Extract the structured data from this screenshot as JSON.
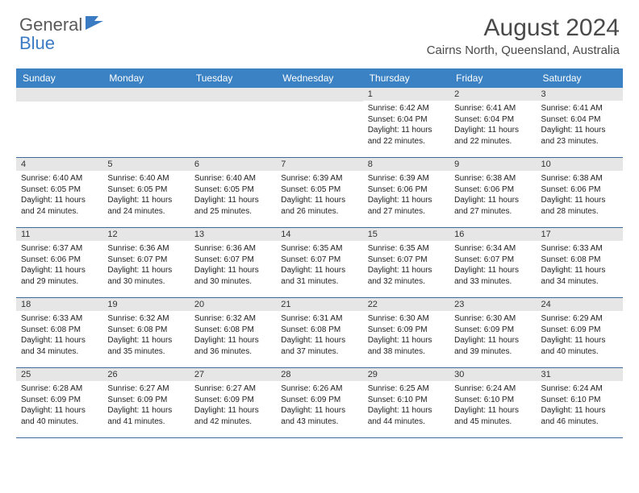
{
  "logo": {
    "part1": "General",
    "part2": "Blue"
  },
  "title": "August 2024",
  "location": "Cairns North, Queensland, Australia",
  "colors": {
    "header_bg": "#3b82c4",
    "header_text": "#ffffff",
    "daynum_bg": "#e6e6e6",
    "week_border": "#3b6a9a",
    "title_color": "#4a4a4a",
    "logo_gray": "#5a5a5a",
    "logo_blue": "#3b7bc4"
  },
  "daynames": [
    "Sunday",
    "Monday",
    "Tuesday",
    "Wednesday",
    "Thursday",
    "Friday",
    "Saturday"
  ],
  "weeks": [
    [
      null,
      null,
      null,
      null,
      {
        "n": "1",
        "sr": "Sunrise: 6:42 AM",
        "ss": "Sunset: 6:04 PM",
        "dl": "Daylight: 11 hours and 22 minutes."
      },
      {
        "n": "2",
        "sr": "Sunrise: 6:41 AM",
        "ss": "Sunset: 6:04 PM",
        "dl": "Daylight: 11 hours and 22 minutes."
      },
      {
        "n": "3",
        "sr": "Sunrise: 6:41 AM",
        "ss": "Sunset: 6:04 PM",
        "dl": "Daylight: 11 hours and 23 minutes."
      }
    ],
    [
      {
        "n": "4",
        "sr": "Sunrise: 6:40 AM",
        "ss": "Sunset: 6:05 PM",
        "dl": "Daylight: 11 hours and 24 minutes."
      },
      {
        "n": "5",
        "sr": "Sunrise: 6:40 AM",
        "ss": "Sunset: 6:05 PM",
        "dl": "Daylight: 11 hours and 24 minutes."
      },
      {
        "n": "6",
        "sr": "Sunrise: 6:40 AM",
        "ss": "Sunset: 6:05 PM",
        "dl": "Daylight: 11 hours and 25 minutes."
      },
      {
        "n": "7",
        "sr": "Sunrise: 6:39 AM",
        "ss": "Sunset: 6:05 PM",
        "dl": "Daylight: 11 hours and 26 minutes."
      },
      {
        "n": "8",
        "sr": "Sunrise: 6:39 AM",
        "ss": "Sunset: 6:06 PM",
        "dl": "Daylight: 11 hours and 27 minutes."
      },
      {
        "n": "9",
        "sr": "Sunrise: 6:38 AM",
        "ss": "Sunset: 6:06 PM",
        "dl": "Daylight: 11 hours and 27 minutes."
      },
      {
        "n": "10",
        "sr": "Sunrise: 6:38 AM",
        "ss": "Sunset: 6:06 PM",
        "dl": "Daylight: 11 hours and 28 minutes."
      }
    ],
    [
      {
        "n": "11",
        "sr": "Sunrise: 6:37 AM",
        "ss": "Sunset: 6:06 PM",
        "dl": "Daylight: 11 hours and 29 minutes."
      },
      {
        "n": "12",
        "sr": "Sunrise: 6:36 AM",
        "ss": "Sunset: 6:07 PM",
        "dl": "Daylight: 11 hours and 30 minutes."
      },
      {
        "n": "13",
        "sr": "Sunrise: 6:36 AM",
        "ss": "Sunset: 6:07 PM",
        "dl": "Daylight: 11 hours and 30 minutes."
      },
      {
        "n": "14",
        "sr": "Sunrise: 6:35 AM",
        "ss": "Sunset: 6:07 PM",
        "dl": "Daylight: 11 hours and 31 minutes."
      },
      {
        "n": "15",
        "sr": "Sunrise: 6:35 AM",
        "ss": "Sunset: 6:07 PM",
        "dl": "Daylight: 11 hours and 32 minutes."
      },
      {
        "n": "16",
        "sr": "Sunrise: 6:34 AM",
        "ss": "Sunset: 6:07 PM",
        "dl": "Daylight: 11 hours and 33 minutes."
      },
      {
        "n": "17",
        "sr": "Sunrise: 6:33 AM",
        "ss": "Sunset: 6:08 PM",
        "dl": "Daylight: 11 hours and 34 minutes."
      }
    ],
    [
      {
        "n": "18",
        "sr": "Sunrise: 6:33 AM",
        "ss": "Sunset: 6:08 PM",
        "dl": "Daylight: 11 hours and 34 minutes."
      },
      {
        "n": "19",
        "sr": "Sunrise: 6:32 AM",
        "ss": "Sunset: 6:08 PM",
        "dl": "Daylight: 11 hours and 35 minutes."
      },
      {
        "n": "20",
        "sr": "Sunrise: 6:32 AM",
        "ss": "Sunset: 6:08 PM",
        "dl": "Daylight: 11 hours and 36 minutes."
      },
      {
        "n": "21",
        "sr": "Sunrise: 6:31 AM",
        "ss": "Sunset: 6:08 PM",
        "dl": "Daylight: 11 hours and 37 minutes."
      },
      {
        "n": "22",
        "sr": "Sunrise: 6:30 AM",
        "ss": "Sunset: 6:09 PM",
        "dl": "Daylight: 11 hours and 38 minutes."
      },
      {
        "n": "23",
        "sr": "Sunrise: 6:30 AM",
        "ss": "Sunset: 6:09 PM",
        "dl": "Daylight: 11 hours and 39 minutes."
      },
      {
        "n": "24",
        "sr": "Sunrise: 6:29 AM",
        "ss": "Sunset: 6:09 PM",
        "dl": "Daylight: 11 hours and 40 minutes."
      }
    ],
    [
      {
        "n": "25",
        "sr": "Sunrise: 6:28 AM",
        "ss": "Sunset: 6:09 PM",
        "dl": "Daylight: 11 hours and 40 minutes."
      },
      {
        "n": "26",
        "sr": "Sunrise: 6:27 AM",
        "ss": "Sunset: 6:09 PM",
        "dl": "Daylight: 11 hours and 41 minutes."
      },
      {
        "n": "27",
        "sr": "Sunrise: 6:27 AM",
        "ss": "Sunset: 6:09 PM",
        "dl": "Daylight: 11 hours and 42 minutes."
      },
      {
        "n": "28",
        "sr": "Sunrise: 6:26 AM",
        "ss": "Sunset: 6:09 PM",
        "dl": "Daylight: 11 hours and 43 minutes."
      },
      {
        "n": "29",
        "sr": "Sunrise: 6:25 AM",
        "ss": "Sunset: 6:10 PM",
        "dl": "Daylight: 11 hours and 44 minutes."
      },
      {
        "n": "30",
        "sr": "Sunrise: 6:24 AM",
        "ss": "Sunset: 6:10 PM",
        "dl": "Daylight: 11 hours and 45 minutes."
      },
      {
        "n": "31",
        "sr": "Sunrise: 6:24 AM",
        "ss": "Sunset: 6:10 PM",
        "dl": "Daylight: 11 hours and 46 minutes."
      }
    ]
  ]
}
